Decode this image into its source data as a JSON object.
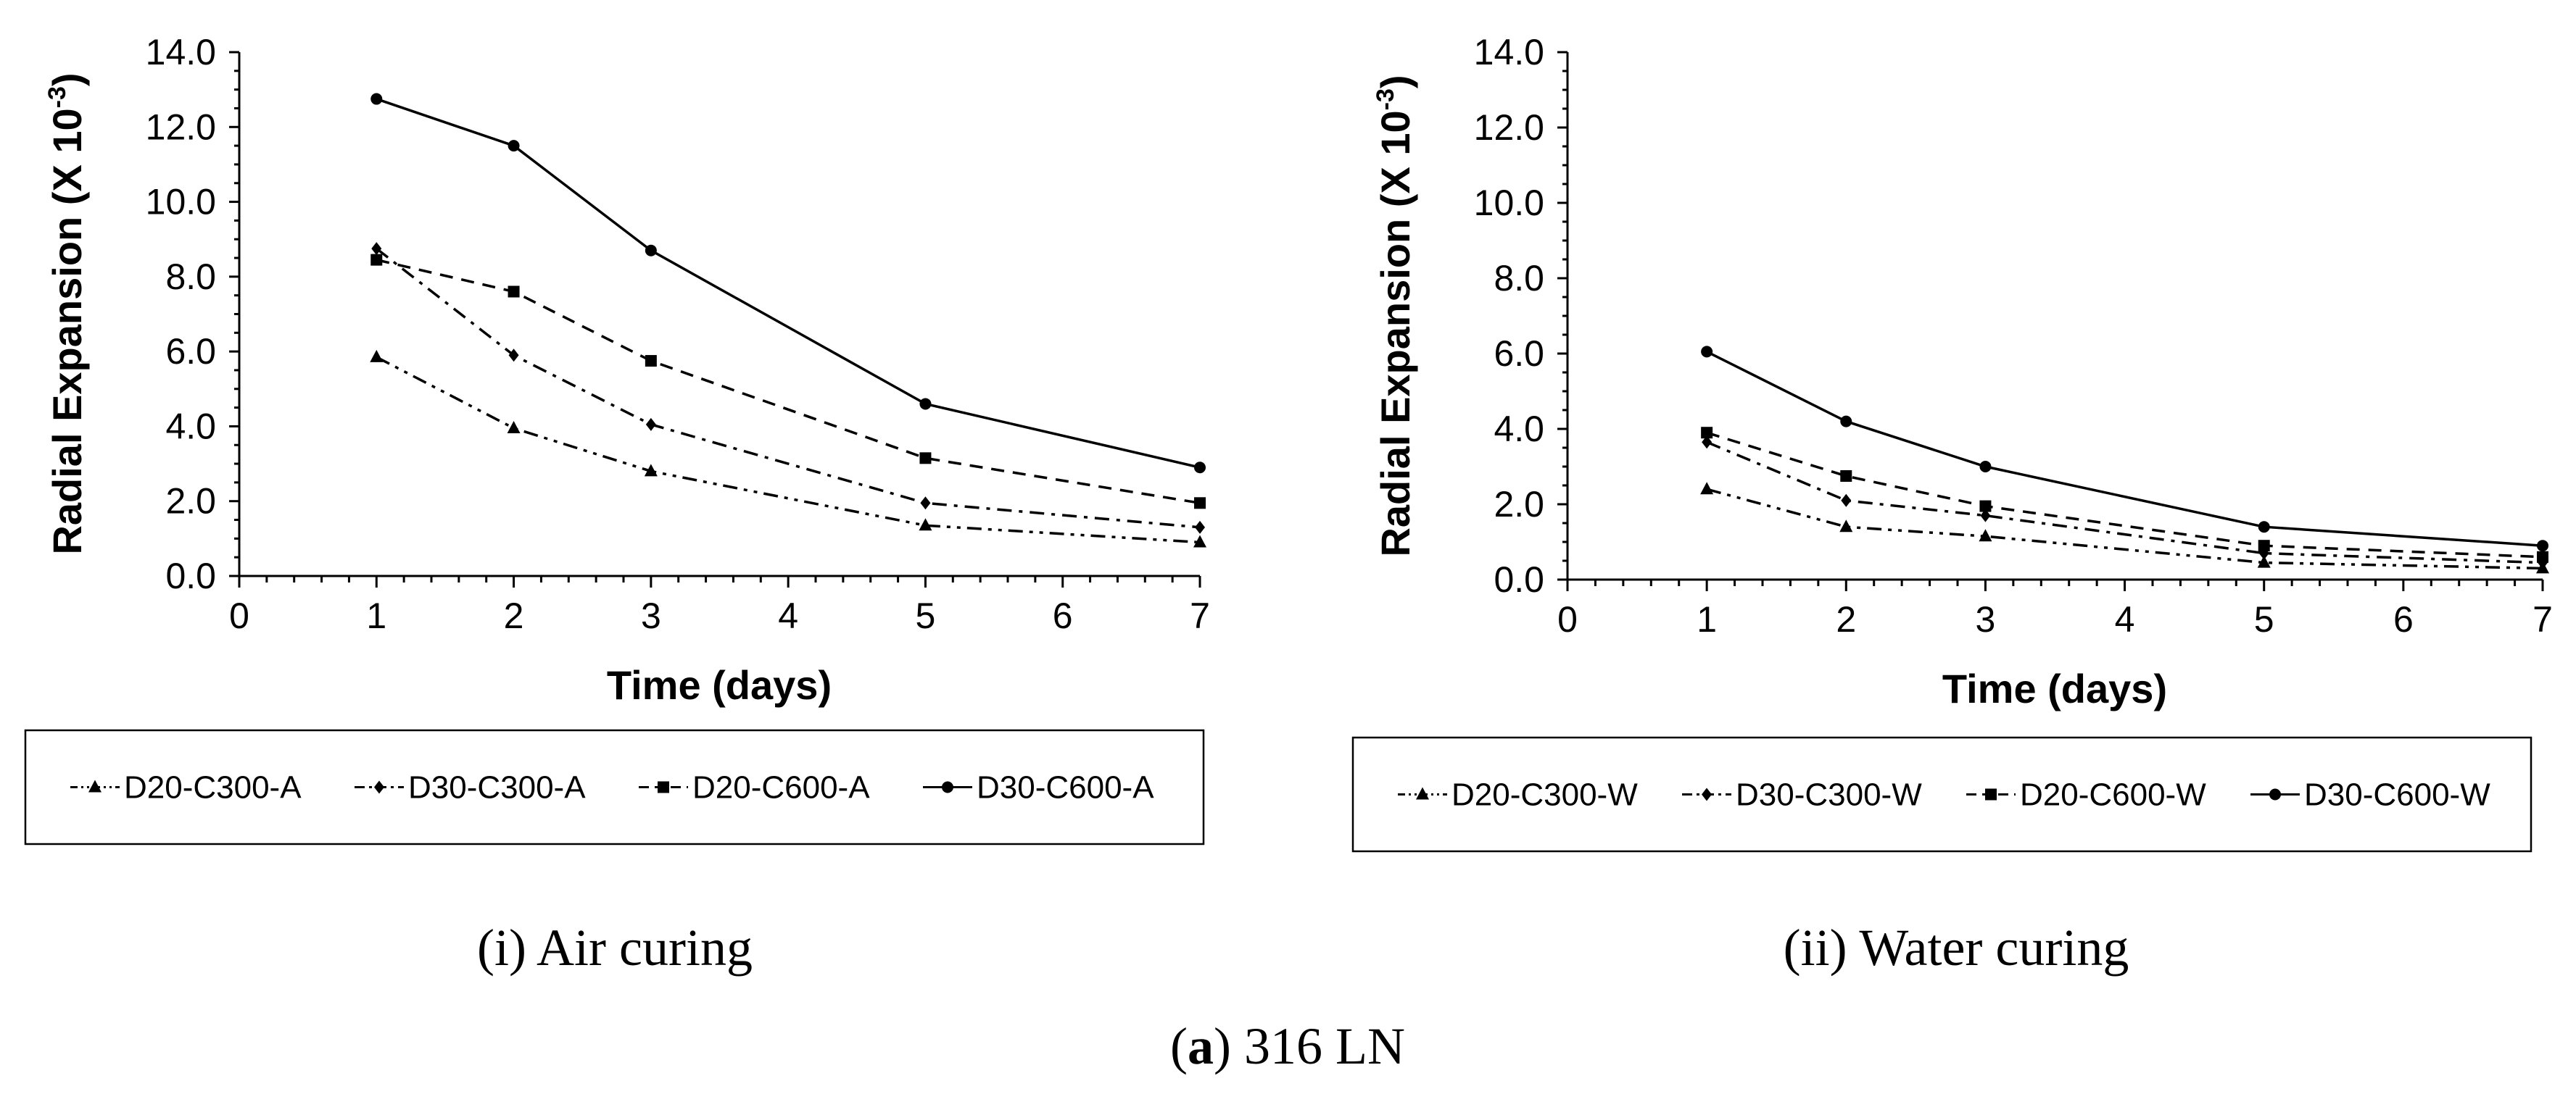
{
  "figure_caption": {
    "letter": "a",
    "text": "316 LN"
  },
  "chart_data": [
    {
      "type": "line",
      "caption": "(i) Air curing",
      "xlabel": "Time (days)",
      "ylabel": "Radial Expansion (X 10",
      "ylabel_sup": "-3",
      "ylabel_close": ")",
      "xlim": [
        0,
        7
      ],
      "ylim": [
        0,
        14
      ],
      "x_ticks": [
        "0",
        "1",
        "2",
        "3",
        "4",
        "5",
        "6",
        "7"
      ],
      "y_ticks": [
        "0.0",
        "2.0",
        "4.0",
        "6.0",
        "8.0",
        "10.0",
        "12.0",
        "14.0"
      ],
      "x": [
        1,
        2,
        3,
        5,
        7
      ],
      "series": [
        {
          "name": "D20-C300-A",
          "marker": "triangle",
          "dash": "dashdotdot",
          "values": [
            5.85,
            3.95,
            2.8,
            1.35,
            0.9
          ]
        },
        {
          "name": "D30-C300-A",
          "marker": "diamond",
          "dash": "dashdot",
          "values": [
            8.75,
            5.9,
            4.05,
            1.95,
            1.3
          ]
        },
        {
          "name": "D20-C600-A",
          "marker": "square",
          "dash": "dashed",
          "values": [
            8.45,
            7.6,
            5.75,
            3.15,
            1.95
          ]
        },
        {
          "name": "D30-C600-A",
          "marker": "circle",
          "dash": "solid",
          "values": [
            12.75,
            11.5,
            8.7,
            4.6,
            2.9
          ]
        }
      ]
    },
    {
      "type": "line",
      "caption": "(ii) Water curing",
      "xlabel": "Time (days)",
      "ylabel": "Radial Expansion (X 10",
      "ylabel_sup": "-3",
      "ylabel_close": ")",
      "xlim": [
        0,
        7
      ],
      "ylim": [
        0,
        14
      ],
      "x_ticks": [
        "0",
        "1",
        "2",
        "3",
        "4",
        "5",
        "6",
        "7"
      ],
      "y_ticks": [
        "0.0",
        "2.0",
        "4.0",
        "6.0",
        "8.0",
        "10.0",
        "12.0",
        "14.0"
      ],
      "x": [
        1,
        2,
        3,
        5,
        7
      ],
      "series": [
        {
          "name": "D20-C300-W",
          "marker": "triangle",
          "dash": "dashdotdot",
          "values": [
            2.4,
            1.4,
            1.15,
            0.45,
            0.3
          ]
        },
        {
          "name": "D30-C300-W",
          "marker": "diamond",
          "dash": "dashdot",
          "values": [
            3.65,
            2.1,
            1.7,
            0.7,
            0.45
          ]
        },
        {
          "name": "D20-C600-W",
          "marker": "square",
          "dash": "dashed",
          "values": [
            3.9,
            2.75,
            1.95,
            0.9,
            0.6
          ]
        },
        {
          "name": "D30-C600-W",
          "marker": "circle",
          "dash": "solid",
          "values": [
            6.05,
            4.2,
            3.0,
            1.4,
            0.9
          ]
        }
      ]
    }
  ]
}
